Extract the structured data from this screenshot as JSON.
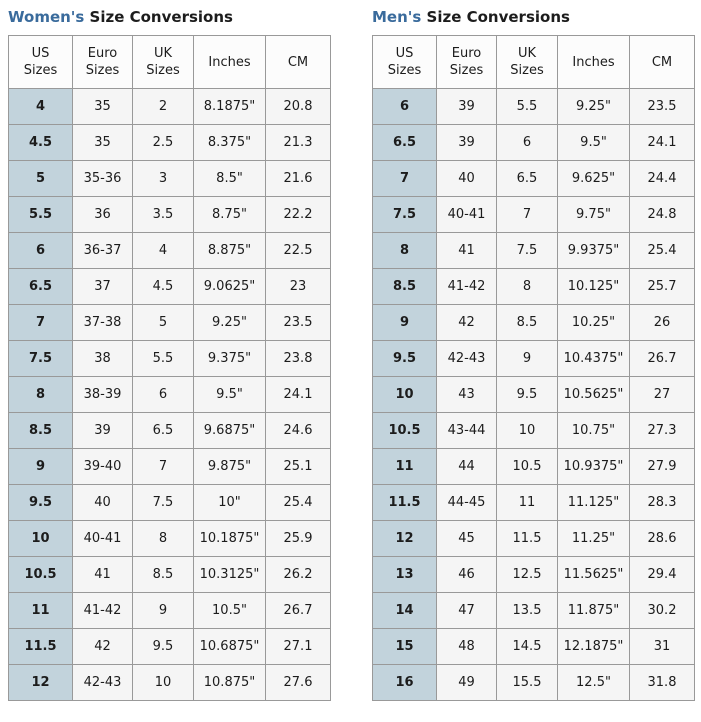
{
  "colors": {
    "title_accent": "#3a6b9c",
    "first_column_bg": "#c2d3dc",
    "cell_bg": "#f5f5f5",
    "header_bg": "#fcfcfc",
    "border": "#999999"
  },
  "tables": {
    "women": {
      "title_highlight": "Women's",
      "title_rest": " Size Conversions",
      "columns": [
        "US\nSizes",
        "Euro\nSizes",
        "UK\nSizes",
        "Inches",
        "CM"
      ],
      "rows": [
        [
          "4",
          "35",
          "2",
          "8.1875\"",
          "20.8"
        ],
        [
          "4.5",
          "35",
          "2.5",
          "8.375\"",
          "21.3"
        ],
        [
          "5",
          "35-36",
          "3",
          "8.5\"",
          "21.6"
        ],
        [
          "5.5",
          "36",
          "3.5",
          "8.75\"",
          "22.2"
        ],
        [
          "6",
          "36-37",
          "4",
          "8.875\"",
          "22.5"
        ],
        [
          "6.5",
          "37",
          "4.5",
          "9.0625\"",
          "23"
        ],
        [
          "7",
          "37-38",
          "5",
          "9.25\"",
          "23.5"
        ],
        [
          "7.5",
          "38",
          "5.5",
          "9.375\"",
          "23.8"
        ],
        [
          "8",
          "38-39",
          "6",
          "9.5\"",
          "24.1"
        ],
        [
          "8.5",
          "39",
          "6.5",
          "9.6875\"",
          "24.6"
        ],
        [
          "9",
          "39-40",
          "7",
          "9.875\"",
          "25.1"
        ],
        [
          "9.5",
          "40",
          "7.5",
          "10\"",
          "25.4"
        ],
        [
          "10",
          "40-41",
          "8",
          "10.1875\"",
          "25.9"
        ],
        [
          "10.5",
          "41",
          "8.5",
          "10.3125\"",
          "26.2"
        ],
        [
          "11",
          "41-42",
          "9",
          "10.5\"",
          "26.7"
        ],
        [
          "11.5",
          "42",
          "9.5",
          "10.6875\"",
          "27.1"
        ],
        [
          "12",
          "42-43",
          "10",
          "10.875\"",
          "27.6"
        ]
      ]
    },
    "men": {
      "title_highlight": "Men's",
      "title_rest": " Size Conversions",
      "columns": [
        "US\nSizes",
        "Euro\nSizes",
        "UK\nSizes",
        "Inches",
        "CM"
      ],
      "rows": [
        [
          "6",
          "39",
          "5.5",
          "9.25\"",
          "23.5"
        ],
        [
          "6.5",
          "39",
          "6",
          "9.5\"",
          "24.1"
        ],
        [
          "7",
          "40",
          "6.5",
          "9.625\"",
          "24.4"
        ],
        [
          "7.5",
          "40-41",
          "7",
          "9.75\"",
          "24.8"
        ],
        [
          "8",
          "41",
          "7.5",
          "9.9375\"",
          "25.4"
        ],
        [
          "8.5",
          "41-42",
          "8",
          "10.125\"",
          "25.7"
        ],
        [
          "9",
          "42",
          "8.5",
          "10.25\"",
          "26"
        ],
        [
          "9.5",
          "42-43",
          "9",
          "10.4375\"",
          "26.7"
        ],
        [
          "10",
          "43",
          "9.5",
          "10.5625\"",
          "27"
        ],
        [
          "10.5",
          "43-44",
          "10",
          "10.75\"",
          "27.3"
        ],
        [
          "11",
          "44",
          "10.5",
          "10.9375\"",
          "27.9"
        ],
        [
          "11.5",
          "44-45",
          "11",
          "11.125\"",
          "28.3"
        ],
        [
          "12",
          "45",
          "11.5",
          "11.25\"",
          "28.6"
        ],
        [
          "13",
          "46",
          "12.5",
          "11.5625\"",
          "29.4"
        ],
        [
          "14",
          "47",
          "13.5",
          "11.875\"",
          "30.2"
        ],
        [
          "15",
          "48",
          "14.5",
          "12.1875\"",
          "31"
        ],
        [
          "16",
          "49",
          "15.5",
          "12.5\"",
          "31.8"
        ]
      ]
    }
  }
}
